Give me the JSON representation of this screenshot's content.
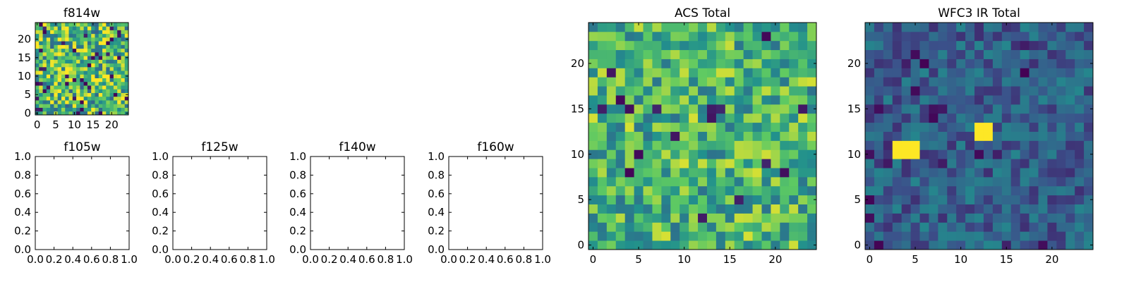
{
  "figure": {
    "background": "#ffffff"
  },
  "colormap": {
    "name": "viridis",
    "stops": [
      "#440154",
      "#3b528b",
      "#21908d",
      "#5dc963",
      "#fde725"
    ]
  },
  "chart_data": [
    {
      "id": "f814w",
      "type": "heatmap",
      "title": "f814w",
      "grid_size": 25,
      "value_range": [
        0,
        1
      ],
      "distribution": "mostly mid-to-high values with scattered dark pixels",
      "xlim": [
        -0.5,
        24.5
      ],
      "ylim": [
        -0.5,
        24.5
      ],
      "xticks": [
        0,
        5,
        10,
        15,
        20
      ],
      "yticks": [
        0,
        5,
        10,
        15,
        20
      ],
      "xtick_labels": [
        "0",
        "5",
        "10",
        "15",
        "20"
      ],
      "ytick_labels": [
        "0",
        "5",
        "10",
        "15",
        "20"
      ],
      "xlabel": "",
      "ylabel": "",
      "seed": 11,
      "mean": 0.68,
      "spread": 0.36,
      "dark_fraction": 0.06
    },
    {
      "id": "f105w",
      "type": "empty",
      "title": "f105w",
      "xlim": [
        0,
        1
      ],
      "ylim": [
        0,
        1
      ],
      "xticks": [
        0,
        0.2,
        0.4,
        0.6,
        0.8,
        1.0
      ],
      "yticks": [
        0,
        0.2,
        0.4,
        0.6,
        0.8,
        1.0
      ],
      "xtick_labels": [
        "0.0",
        "0.2",
        "0.4",
        "0.6",
        "0.8",
        "1.0"
      ],
      "ytick_labels": [
        "0.0",
        "0.2",
        "0.4",
        "0.6",
        "0.8",
        "1.0"
      ],
      "xlabel": "",
      "ylabel": ""
    },
    {
      "id": "f125w",
      "type": "empty",
      "title": "f125w",
      "xlim": [
        0,
        1
      ],
      "ylim": [
        0,
        1
      ],
      "xticks": [
        0,
        0.2,
        0.4,
        0.6,
        0.8,
        1.0
      ],
      "yticks": [
        0,
        0.2,
        0.4,
        0.6,
        0.8,
        1.0
      ],
      "xtick_labels": [
        "0.0",
        "0.2",
        "0.4",
        "0.6",
        "0.8",
        "1.0"
      ],
      "ytick_labels": [
        "0.0",
        "0.2",
        "0.4",
        "0.6",
        "0.8",
        "1.0"
      ],
      "xlabel": "",
      "ylabel": ""
    },
    {
      "id": "f140w",
      "type": "empty",
      "title": "f140w",
      "xlim": [
        0,
        1
      ],
      "ylim": [
        0,
        1
      ],
      "xticks": [
        0,
        0.2,
        0.4,
        0.6,
        0.8,
        1.0
      ],
      "yticks": [
        0,
        0.2,
        0.4,
        0.6,
        0.8,
        1.0
      ],
      "xtick_labels": [
        "0.0",
        "0.2",
        "0.4",
        "0.6",
        "0.8",
        "1.0"
      ],
      "ytick_labels": [
        "0.0",
        "0.2",
        "0.4",
        "0.6",
        "0.8",
        "1.0"
      ],
      "xlabel": "",
      "ylabel": ""
    },
    {
      "id": "f160w",
      "type": "empty",
      "title": "f160w",
      "xlim": [
        0,
        1
      ],
      "ylim": [
        0,
        1
      ],
      "xticks": [
        0,
        0.2,
        0.4,
        0.6,
        0.8,
        1.0
      ],
      "yticks": [
        0,
        0.2,
        0.4,
        0.6,
        0.8,
        1.0
      ],
      "xtick_labels": [
        "0.0",
        "0.2",
        "0.4",
        "0.6",
        "0.8",
        "1.0"
      ],
      "ytick_labels": [
        "0.0",
        "0.2",
        "0.4",
        "0.6",
        "0.8",
        "1.0"
      ],
      "xlabel": "",
      "ylabel": ""
    },
    {
      "id": "acs_total",
      "type": "heatmap",
      "title": "ACS Total",
      "grid_size": 25,
      "value_range": [
        0,
        1
      ],
      "distribution": "mostly green/yellow-green values with scattered dark and bright pixels",
      "xlim": [
        -0.5,
        24.5
      ],
      "ylim": [
        -0.5,
        24.5
      ],
      "xticks": [
        0,
        5,
        10,
        15,
        20
      ],
      "yticks": [
        0,
        5,
        10,
        15,
        20
      ],
      "xtick_labels": [
        "0",
        "5",
        "10",
        "15",
        "20"
      ],
      "ytick_labels": [
        "0",
        "5",
        "10",
        "15",
        "20"
      ],
      "xlabel": "",
      "ylabel": "",
      "seed": 23,
      "mean": 0.66,
      "spread": 0.28,
      "dark_fraction": 0.025
    },
    {
      "id": "wfc3_ir_total",
      "type": "heatmap",
      "title": "WFC3 IR Total",
      "grid_size": 25,
      "value_range": [
        0,
        1
      ],
      "distribution": "mostly dark blue-teal background with two bright yellow sources",
      "xlim": [
        -0.5,
        24.5
      ],
      "ylim": [
        -0.5,
        24.5
      ],
      "xticks": [
        0,
        5,
        10,
        15,
        20
      ],
      "yticks": [
        0,
        5,
        10,
        15,
        20
      ],
      "xtick_labels": [
        "0",
        "5",
        "10",
        "15",
        "20"
      ],
      "ytick_labels": [
        "0",
        "5",
        "10",
        "15",
        "20"
      ],
      "xlabel": "",
      "ylabel": "",
      "seed": 37,
      "mean": 0.3,
      "spread": 0.16,
      "dark_fraction": 0.04,
      "sources": [
        {
          "x": [
            3,
            5
          ],
          "y": [
            10,
            11
          ],
          "value": 1.0
        },
        {
          "x": [
            12,
            13
          ],
          "y": [
            12,
            13
          ],
          "value": 1.0
        }
      ]
    }
  ]
}
